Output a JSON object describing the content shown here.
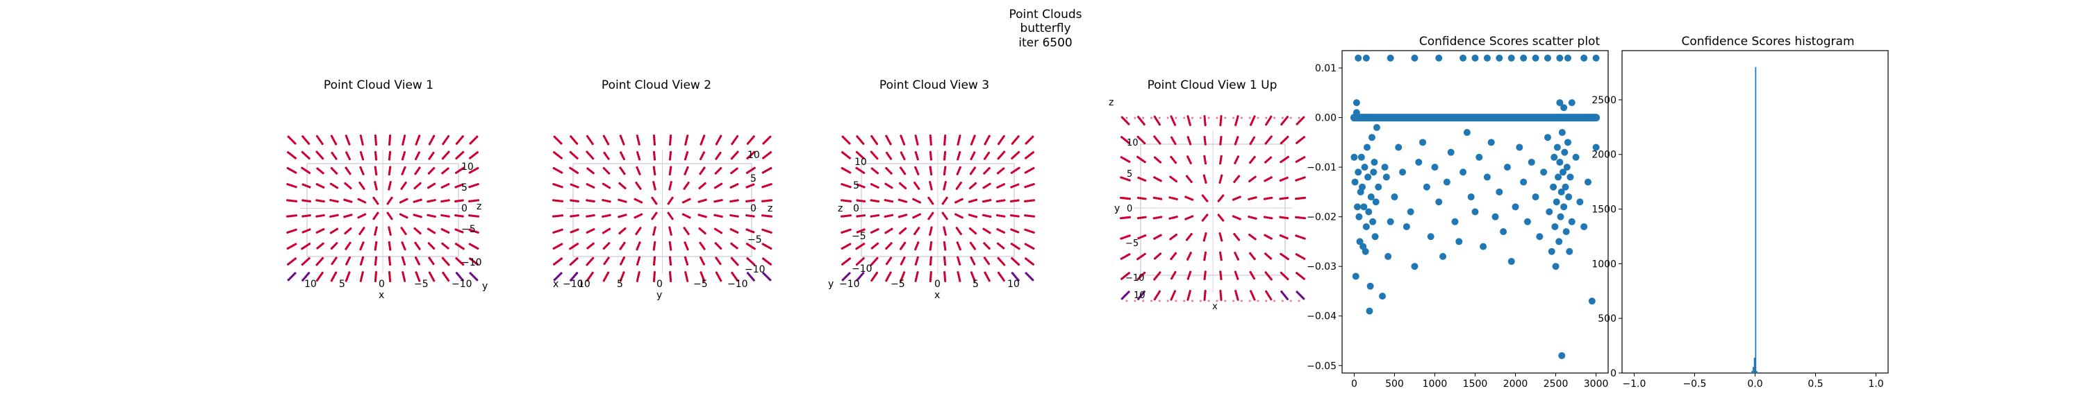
{
  "figure": {
    "title_lines": [
      "Point Clouds",
      "butterfly",
      "iter 6500"
    ]
  },
  "colors": {
    "point_main": "#cc0033",
    "point_dark": "#6a0a8a",
    "scatter": "#1f77b4",
    "hist": "#1f77b4",
    "axis": "#000000"
  },
  "views": [
    {
      "title": "Point Cloud View 1",
      "x_ticks": [
        "10",
        "5",
        "0",
        "−5",
        "−10"
      ],
      "x_label": "x",
      "side_ticks": [
        "10",
        "5",
        "0",
        "−5",
        "−10"
      ],
      "extra_labels": [
        "z",
        "y"
      ]
    },
    {
      "title": "Point Cloud View 2",
      "x_ticks": [
        "−10",
        "10",
        "5",
        "0",
        "−5",
        "−10"
      ],
      "x_label": "y",
      "side_ticks": [
        "10",
        "5",
        "0",
        "−5",
        "−10"
      ],
      "extra_labels": [
        "x",
        "z"
      ]
    },
    {
      "title": "Point Cloud View 3",
      "x_ticks": [
        "−10",
        "−5",
        "0",
        "5",
        "10"
      ],
      "x_label": "x",
      "side_ticks": [
        "10",
        "5",
        "0",
        "−5",
        "−10"
      ],
      "extra_labels": [
        "y",
        "z"
      ]
    },
    {
      "title": "Point Cloud View 1 Up",
      "x_ticks": [
        "10",
        "x"
      ],
      "x_label": "x",
      "side_ticks": [
        "10",
        "5",
        "0",
        "−5",
        "−10"
      ],
      "extra_labels": [
        "z",
        "y"
      ]
    }
  ],
  "chart_data": [
    {
      "type": "scatter",
      "title": "Confidence Scores scatter plot",
      "xlabel": "",
      "ylabel": "",
      "xlim": [
        -150,
        3150
      ],
      "ylim": [
        -0.0515,
        0.0135
      ],
      "x_ticks": [
        0,
        500,
        1000,
        1500,
        2000,
        2500,
        3000
      ],
      "y_ticks": [
        0.01,
        0.0,
        -0.01,
        -0.02,
        -0.03,
        -0.04,
        -0.05
      ],
      "x_tick_labels": [
        "0",
        "500",
        "1000",
        "1500",
        "2000",
        "2500",
        "3000"
      ],
      "y_tick_labels": [
        "0.01",
        "0.00",
        "−0.01",
        "−0.02",
        "−0.03",
        "−0.04",
        "−0.05"
      ],
      "baseline_y": 0.0,
      "baseline_x_range": [
        0,
        3000
      ],
      "points": [
        [
          0,
          -0.008
        ],
        [
          10,
          -0.013
        ],
        [
          20,
          -0.032
        ],
        [
          30,
          0.003
        ],
        [
          40,
          -0.018
        ],
        [
          50,
          -0.011
        ],
        [
          60,
          -0.02
        ],
        [
          70,
          -0.025
        ],
        [
          80,
          -0.015
        ],
        [
          90,
          -0.008
        ],
        [
          100,
          -0.014
        ],
        [
          110,
          -0.026
        ],
        [
          120,
          -0.018
        ],
        [
          130,
          -0.01
        ],
        [
          140,
          -0.027
        ],
        [
          150,
          -0.022
        ],
        [
          160,
          -0.006
        ],
        [
          170,
          -0.012
        ],
        [
          180,
          -0.019
        ],
        [
          190,
          -0.039
        ],
        [
          200,
          -0.034
        ],
        [
          210,
          -0.016
        ],
        [
          220,
          -0.004
        ],
        [
          230,
          -0.021
        ],
        [
          240,
          -0.011
        ],
        [
          250,
          -0.009
        ],
        [
          260,
          -0.024
        ],
        [
          270,
          -0.017
        ],
        [
          280,
          -0.002
        ],
        [
          300,
          -0.014
        ],
        [
          350,
          -0.036
        ],
        [
          380,
          -0.01
        ],
        [
          400,
          -0.012
        ],
        [
          420,
          -0.028
        ],
        [
          450,
          -0.021
        ],
        [
          500,
          -0.016
        ],
        [
          550,
          -0.006
        ],
        [
          600,
          -0.011
        ],
        [
          650,
          -0.022
        ],
        [
          700,
          -0.019
        ],
        [
          750,
          -0.03
        ],
        [
          800,
          -0.009
        ],
        [
          850,
          -0.005
        ],
        [
          900,
          -0.014
        ],
        [
          950,
          -0.024
        ],
        [
          1000,
          -0.01
        ],
        [
          1050,
          -0.017
        ],
        [
          1100,
          -0.028
        ],
        [
          1150,
          -0.013
        ],
        [
          1200,
          -0.007
        ],
        [
          1250,
          -0.021
        ],
        [
          1300,
          -0.025
        ],
        [
          1350,
          -0.011
        ],
        [
          1400,
          -0.003
        ],
        [
          1450,
          -0.016
        ],
        [
          1500,
          -0.019
        ],
        [
          1550,
          -0.008
        ],
        [
          1600,
          -0.026
        ],
        [
          1650,
          -0.012
        ],
        [
          1700,
          -0.005
        ],
        [
          1750,
          -0.02
        ],
        [
          1800,
          -0.015
        ],
        [
          1850,
          -0.023
        ],
        [
          1900,
          -0.01
        ],
        [
          1950,
          -0.029
        ],
        [
          2000,
          -0.018
        ],
        [
          2050,
          -0.006
        ],
        [
          2100,
          -0.013
        ],
        [
          2150,
          -0.021
        ],
        [
          2200,
          -0.009
        ],
        [
          2250,
          -0.016
        ],
        [
          2300,
          -0.024
        ],
        [
          2350,
          -0.011
        ],
        [
          2400,
          -0.004
        ],
        [
          2420,
          -0.019
        ],
        [
          2450,
          -0.027
        ],
        [
          2470,
          -0.014
        ],
        [
          2480,
          -0.008
        ],
        [
          2490,
          -0.022
        ],
        [
          2500,
          -0.03
        ],
        [
          2510,
          -0.017
        ],
        [
          2520,
          -0.006
        ],
        [
          2530,
          -0.012
        ],
        [
          2540,
          -0.025
        ],
        [
          2550,
          -0.009
        ],
        [
          2560,
          -0.02
        ],
        [
          2570,
          -0.015
        ],
        [
          2575,
          -0.048
        ],
        [
          2580,
          -0.003
        ],
        [
          2590,
          -0.011
        ],
        [
          2600,
          -0.018
        ],
        [
          2610,
          -0.007
        ],
        [
          2620,
          -0.014
        ],
        [
          2630,
          -0.023
        ],
        [
          2640,
          -0.01
        ],
        [
          2650,
          -0.005
        ],
        [
          2660,
          -0.016
        ],
        [
          2670,
          -0.027
        ],
        [
          2680,
          -0.012
        ],
        [
          2700,
          -0.021
        ],
        [
          2750,
          -0.008
        ],
        [
          2800,
          -0.017
        ],
        [
          2850,
          -0.022
        ],
        [
          2900,
          -0.013
        ],
        [
          2950,
          -0.037
        ],
        [
          3000,
          -0.006
        ],
        [
          50,
          0.012
        ],
        [
          150,
          0.012
        ],
        [
          450,
          0.012
        ],
        [
          750,
          0.012
        ],
        [
          1050,
          0.012
        ],
        [
          1350,
          0.012
        ],
        [
          1500,
          0.012
        ],
        [
          1650,
          0.012
        ],
        [
          1800,
          0.012
        ],
        [
          1950,
          0.012
        ],
        [
          2100,
          0.012
        ],
        [
          2250,
          0.012
        ],
        [
          2400,
          0.012
        ],
        [
          2550,
          0.012
        ],
        [
          2650,
          0.012
        ],
        [
          2850,
          0.012
        ],
        [
          3000,
          0.012
        ],
        [
          2550,
          0.003
        ],
        [
          2600,
          0.002
        ],
        [
          30,
          0.001
        ],
        [
          2700,
          0.003
        ]
      ]
    },
    {
      "type": "bar",
      "title": "Confidence Scores histogram",
      "xlabel": "",
      "ylabel": "",
      "xlim": [
        -1.1,
        1.1
      ],
      "ylim": [
        0,
        2950
      ],
      "x_ticks": [
        -1.0,
        -0.5,
        0.0,
        0.5,
        1.0
      ],
      "y_ticks": [
        0,
        500,
        1000,
        1500,
        2000,
        2500
      ],
      "x_tick_labels": [
        "−1.0",
        "−0.5",
        "0.0",
        "0.5",
        "1.0"
      ],
      "y_tick_labels": [
        "0",
        "500",
        "1000",
        "1500",
        "2000",
        "2500"
      ],
      "bins": [
        {
          "x0": -0.05,
          "x1": -0.04,
          "count": 2
        },
        {
          "x0": -0.04,
          "x1": -0.03,
          "count": 6
        },
        {
          "x0": -0.03,
          "x1": -0.02,
          "count": 18
        },
        {
          "x0": -0.02,
          "x1": -0.01,
          "count": 55
        },
        {
          "x0": -0.01,
          "x1": 0.0,
          "count": 140
        },
        {
          "x0": 0.0,
          "x1": 0.01,
          "count": 2800
        },
        {
          "x0": 0.01,
          "x1": 0.02,
          "count": 18
        }
      ]
    }
  ]
}
